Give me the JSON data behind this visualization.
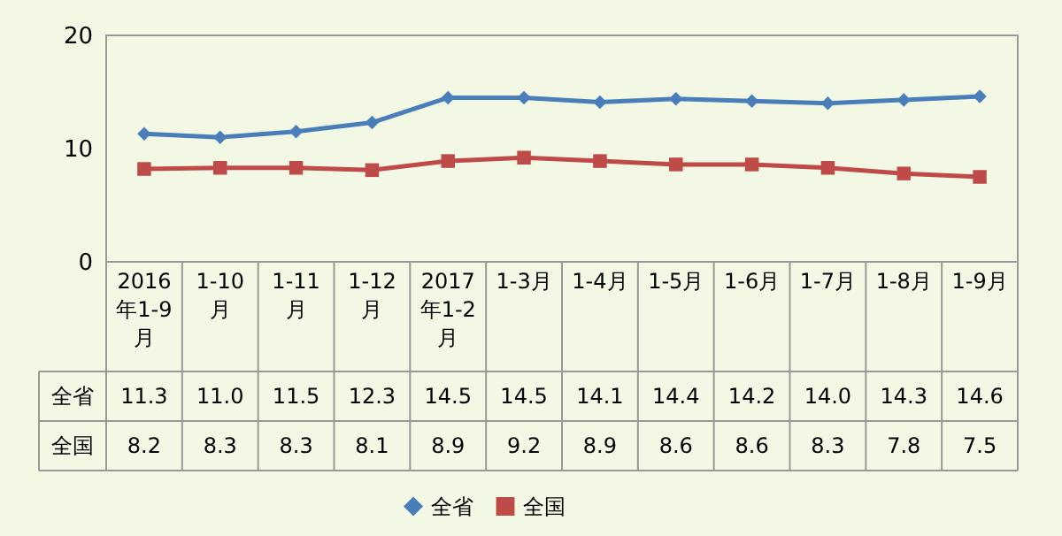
{
  "chart_data": {
    "type": "line",
    "categories": [
      "2016年1-9月",
      "1-10月",
      "1-11月",
      "1-12月",
      "2017年1-2月",
      "1-3月",
      "1-4月",
      "1-5月",
      "1-6月",
      "1-7月",
      "1-8月",
      "1-9月"
    ],
    "series": [
      {
        "name": "全省",
        "color": "#4a7ebb",
        "marker": "diamond",
        "values": [
          11.3,
          11.0,
          11.5,
          12.3,
          14.5,
          14.5,
          14.1,
          14.4,
          14.2,
          14.0,
          14.3,
          14.6
        ],
        "value_labels": [
          "11.3",
          "11.0",
          "11.5",
          "12.3",
          "14.5",
          "14.5",
          "14.1",
          "14.4",
          "14.2",
          "14.0",
          "14.3",
          "14.6"
        ]
      },
      {
        "name": "全国",
        "color": "#be4b48",
        "marker": "square",
        "values": [
          8.2,
          8.3,
          8.3,
          8.1,
          8.9,
          9.2,
          8.9,
          8.6,
          8.6,
          8.3,
          7.8,
          7.5
        ],
        "value_labels": [
          "8.2",
          "8.3",
          "8.3",
          "8.1",
          "8.9",
          "9.2",
          "8.9",
          "8.6",
          "8.6",
          "8.3",
          "7.8",
          "7.5"
        ]
      }
    ],
    "ylim": [
      0,
      20
    ],
    "yticks": [
      0,
      10,
      20
    ],
    "legend": "bottom"
  }
}
